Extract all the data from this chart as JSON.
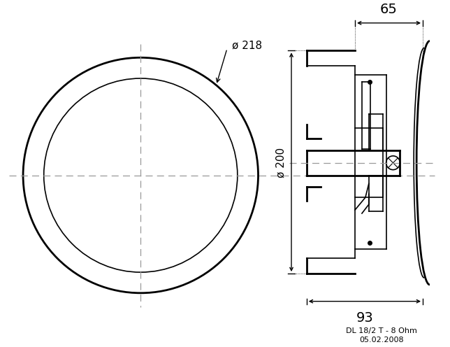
{
  "bg_color": "#ffffff",
  "lc": "#000000",
  "dc": "#999999",
  "label_218": "ø 218",
  "label_200": "ø 200",
  "label_65": "65",
  "label_93": "93",
  "model_text": "DL 18/2 T - 8 Ohm",
  "date_text": "05.02.2008"
}
